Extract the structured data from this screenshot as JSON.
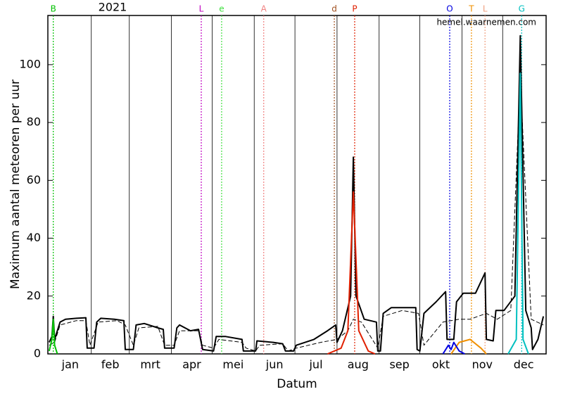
{
  "chart_data": {
    "type": "line",
    "title": "2021",
    "annotation": "hemel.waarnemen.com",
    "xlabel": "Datum",
    "ylabel": "Maximum aantal meteoren per uur",
    "xlim": [
      -1,
      366
    ],
    "ylim": [
      0,
      117
    ],
    "yticks": [
      0,
      20,
      40,
      60,
      80,
      100
    ],
    "xticks": [
      0,
      31,
      59,
      90,
      120,
      151,
      181,
      212,
      243,
      273,
      304,
      334,
      365
    ],
    "categories": [
      "jan",
      "feb",
      "mrt",
      "apr",
      "mei",
      "jun",
      "jul",
      "aug",
      "sep",
      "okt",
      "nov",
      "dec"
    ],
    "showers": [
      {
        "label": "B",
        "x": 3,
        "color": "#00c000"
      },
      {
        "label": "L",
        "x": 112,
        "color": "#c000c0"
      },
      {
        "label": "e",
        "x": 127,
        "color": "#40e040"
      },
      {
        "label": "A",
        "x": 158,
        "color": "#f08080"
      },
      {
        "label": "d",
        "x": 210,
        "color": "#a05020"
      },
      {
        "label": "P",
        "x": 225,
        "color": "#e02000"
      },
      {
        "label": "O",
        "x": 295,
        "color": "#0000e0"
      },
      {
        "label": "T",
        "x": 311,
        "color": "#f09000"
      },
      {
        "label": "L",
        "x": 321,
        "color": "#f0a080"
      },
      {
        "label": "G",
        "x": 348,
        "color": "#00c0c0"
      }
    ],
    "series": [
      {
        "color": "#000000",
        "dash": false,
        "width": 2,
        "x": [
          0,
          2,
          3,
          4,
          6,
          8,
          12,
          20,
          27,
          28,
          33,
          35,
          38,
          48,
          55,
          56,
          62,
          64,
          70,
          80,
          84,
          85,
          92,
          94,
          96,
          104,
          110,
          113,
          121,
          123,
          130,
          142,
          143,
          152,
          153,
          165,
          172,
          174,
          180,
          182,
          195,
          205,
          211,
          212,
          216,
          222,
          224,
          226,
          232,
          241,
          242,
          244,
          246,
          252,
          260,
          270,
          271,
          273,
          276,
          285,
          292,
          293,
          298,
          300,
          305,
          314,
          321,
          322,
          327,
          329,
          335,
          343,
          347,
          351,
          355,
          356,
          360,
          364
        ],
        "values": [
          4,
          6,
          13,
          5,
          8,
          11,
          12,
          12.3,
          12.5,
          2,
          2,
          11,
          12.3,
          12,
          11.5,
          1.5,
          1.5,
          10,
          10.5,
          9,
          8.5,
          2,
          2,
          9,
          10,
          8,
          8.5,
          1.5,
          1,
          6,
          6,
          5,
          1,
          1,
          4.5,
          4,
          3.5,
          1,
          1,
          3,
          5,
          8,
          10,
          4,
          8,
          20,
          68,
          20,
          12,
          11,
          1,
          1,
          14,
          16,
          16,
          16,
          1.5,
          1,
          14,
          18,
          21.5,
          5,
          5,
          18,
          21,
          21,
          28,
          5,
          4.5,
          15,
          15,
          20,
          110,
          15,
          9,
          1.5,
          5,
          13
        ]
      },
      {
        "color": "#000000",
        "dash": true,
        "width": 1,
        "x": [
          0,
          4,
          8,
          20,
          27,
          30,
          36,
          50,
          56,
          62,
          66,
          80,
          85,
          92,
          96,
          110,
          113,
          121,
          125,
          142,
          145,
          152,
          155,
          172,
          176,
          182,
          200,
          212,
          220,
          224,
          230,
          242,
          246,
          260,
          272,
          276,
          290,
          302,
          310,
          322,
          330,
          340,
          347,
          355,
          364
        ],
        "values": [
          3,
          4,
          10,
          11.5,
          11.5,
          3,
          11,
          11.5,
          10,
          3,
          9,
          9.5,
          3,
          3,
          8,
          8,
          3,
          2,
          5,
          4,
          2,
          1,
          3,
          3.5,
          1,
          2,
          4,
          5,
          8,
          12,
          11,
          2,
          13,
          15,
          14,
          3,
          11,
          12,
          12,
          14,
          12,
          15,
          96,
          12,
          10
        ]
      },
      {
        "color": "#e02000",
        "dash": false,
        "width": 2,
        "x": [
          205,
          215,
          220,
          224,
          228,
          235,
          240
        ],
        "values": [
          0,
          2,
          8,
          56,
          8,
          1,
          0
        ]
      },
      {
        "color": "#00c0c0",
        "dash": false,
        "width": 2,
        "x": [
          338,
          344,
          347,
          349,
          353
        ],
        "values": [
          0,
          5,
          97,
          5,
          0
        ]
      },
      {
        "color": "#00c000",
        "dash": false,
        "width": 2,
        "x": [
          0,
          2,
          3,
          4,
          6
        ],
        "values": [
          1,
          5,
          12,
          3,
          0
        ]
      },
      {
        "color": "#f09000",
        "dash": false,
        "width": 2,
        "x": [
          296,
          302,
          310,
          318,
          322
        ],
        "values": [
          0,
          4,
          5,
          2,
          0
        ]
      },
      {
        "color": "#0000e0",
        "dash": false,
        "width": 2,
        "x": [
          290,
          294,
          296,
          298,
          302,
          306
        ],
        "values": [
          0,
          3,
          1.5,
          4,
          1,
          0
        ]
      }
    ]
  }
}
